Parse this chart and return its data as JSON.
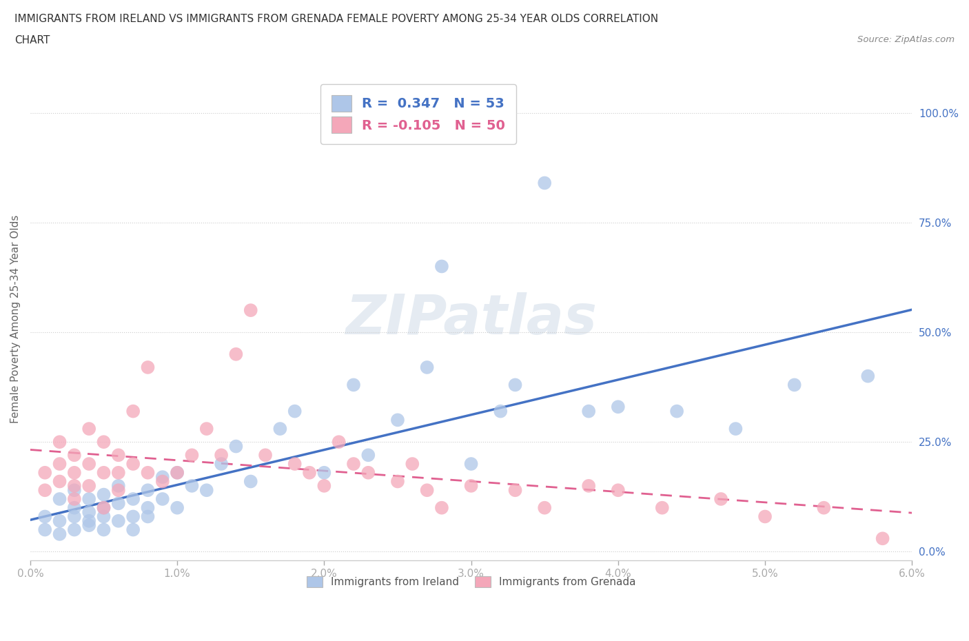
{
  "title_line1": "IMMIGRANTS FROM IRELAND VS IMMIGRANTS FROM GRENADA FEMALE POVERTY AMONG 25-34 YEAR OLDS CORRELATION",
  "title_line2": "CHART",
  "source": "Source: ZipAtlas.com",
  "ylabel": "Female Poverty Among 25-34 Year Olds",
  "xlim": [
    0.0,
    0.06
  ],
  "ylim": [
    -0.02,
    1.08
  ],
  "xticks": [
    0.0,
    0.01,
    0.02,
    0.03,
    0.04,
    0.05,
    0.06
  ],
  "xticklabels": [
    "0.0%",
    "1.0%",
    "2.0%",
    "3.0%",
    "4.0%",
    "5.0%",
    "6.0%"
  ],
  "yticks": [
    0.0,
    0.25,
    0.5,
    0.75,
    1.0
  ],
  "yticklabels": [
    "0.0%",
    "25.0%",
    "50.0%",
    "75.0%",
    "100.0%"
  ],
  "ireland_color": "#aec6e8",
  "grenada_color": "#f4a7b9",
  "ireland_line_color": "#4472c4",
  "grenada_line_color": "#e06090",
  "ireland_R": 0.347,
  "ireland_N": 53,
  "grenada_R": -0.105,
  "grenada_N": 50,
  "watermark": "ZIPatlas",
  "watermark_color": "#d0dce8",
  "background_color": "#ffffff",
  "title_color": "#333333",
  "axis_label_color": "#666666",
  "tick_label_color_x": "#aaaaaa",
  "right_tick_color": "#4472c4",
  "ireland_x": [
    0.001,
    0.001,
    0.002,
    0.002,
    0.002,
    0.003,
    0.003,
    0.003,
    0.003,
    0.004,
    0.004,
    0.004,
    0.004,
    0.005,
    0.005,
    0.005,
    0.005,
    0.006,
    0.006,
    0.006,
    0.007,
    0.007,
    0.007,
    0.008,
    0.008,
    0.008,
    0.009,
    0.009,
    0.01,
    0.01,
    0.011,
    0.012,
    0.013,
    0.014,
    0.015,
    0.017,
    0.018,
    0.02,
    0.022,
    0.023,
    0.025,
    0.027,
    0.028,
    0.03,
    0.032,
    0.033,
    0.035,
    0.038,
    0.04,
    0.044,
    0.048,
    0.052,
    0.057
  ],
  "ireland_y": [
    0.05,
    0.08,
    0.04,
    0.07,
    0.12,
    0.05,
    0.08,
    0.1,
    0.14,
    0.06,
    0.09,
    0.12,
    0.07,
    0.05,
    0.1,
    0.13,
    0.08,
    0.07,
    0.11,
    0.15,
    0.08,
    0.12,
    0.05,
    0.1,
    0.14,
    0.08,
    0.12,
    0.17,
    0.1,
    0.18,
    0.15,
    0.14,
    0.2,
    0.24,
    0.16,
    0.28,
    0.32,
    0.18,
    0.38,
    0.22,
    0.3,
    0.42,
    0.65,
    0.2,
    0.32,
    0.38,
    0.84,
    0.32,
    0.33,
    0.32,
    0.28,
    0.38,
    0.4
  ],
  "grenada_x": [
    0.001,
    0.001,
    0.002,
    0.002,
    0.002,
    0.003,
    0.003,
    0.003,
    0.003,
    0.004,
    0.004,
    0.004,
    0.005,
    0.005,
    0.005,
    0.006,
    0.006,
    0.006,
    0.007,
    0.007,
    0.008,
    0.008,
    0.009,
    0.01,
    0.011,
    0.012,
    0.013,
    0.014,
    0.015,
    0.016,
    0.018,
    0.019,
    0.02,
    0.021,
    0.022,
    0.023,
    0.025,
    0.026,
    0.027,
    0.028,
    0.03,
    0.033,
    0.035,
    0.038,
    0.04,
    0.043,
    0.047,
    0.05,
    0.054,
    0.058
  ],
  "grenada_y": [
    0.14,
    0.18,
    0.16,
    0.2,
    0.25,
    0.12,
    0.18,
    0.22,
    0.15,
    0.2,
    0.28,
    0.15,
    0.18,
    0.25,
    0.1,
    0.14,
    0.22,
    0.18,
    0.32,
    0.2,
    0.42,
    0.18,
    0.16,
    0.18,
    0.22,
    0.28,
    0.22,
    0.45,
    0.55,
    0.22,
    0.2,
    0.18,
    0.15,
    0.25,
    0.2,
    0.18,
    0.16,
    0.2,
    0.14,
    0.1,
    0.15,
    0.14,
    0.1,
    0.15,
    0.14,
    0.1,
    0.12,
    0.08,
    0.1,
    0.03
  ]
}
